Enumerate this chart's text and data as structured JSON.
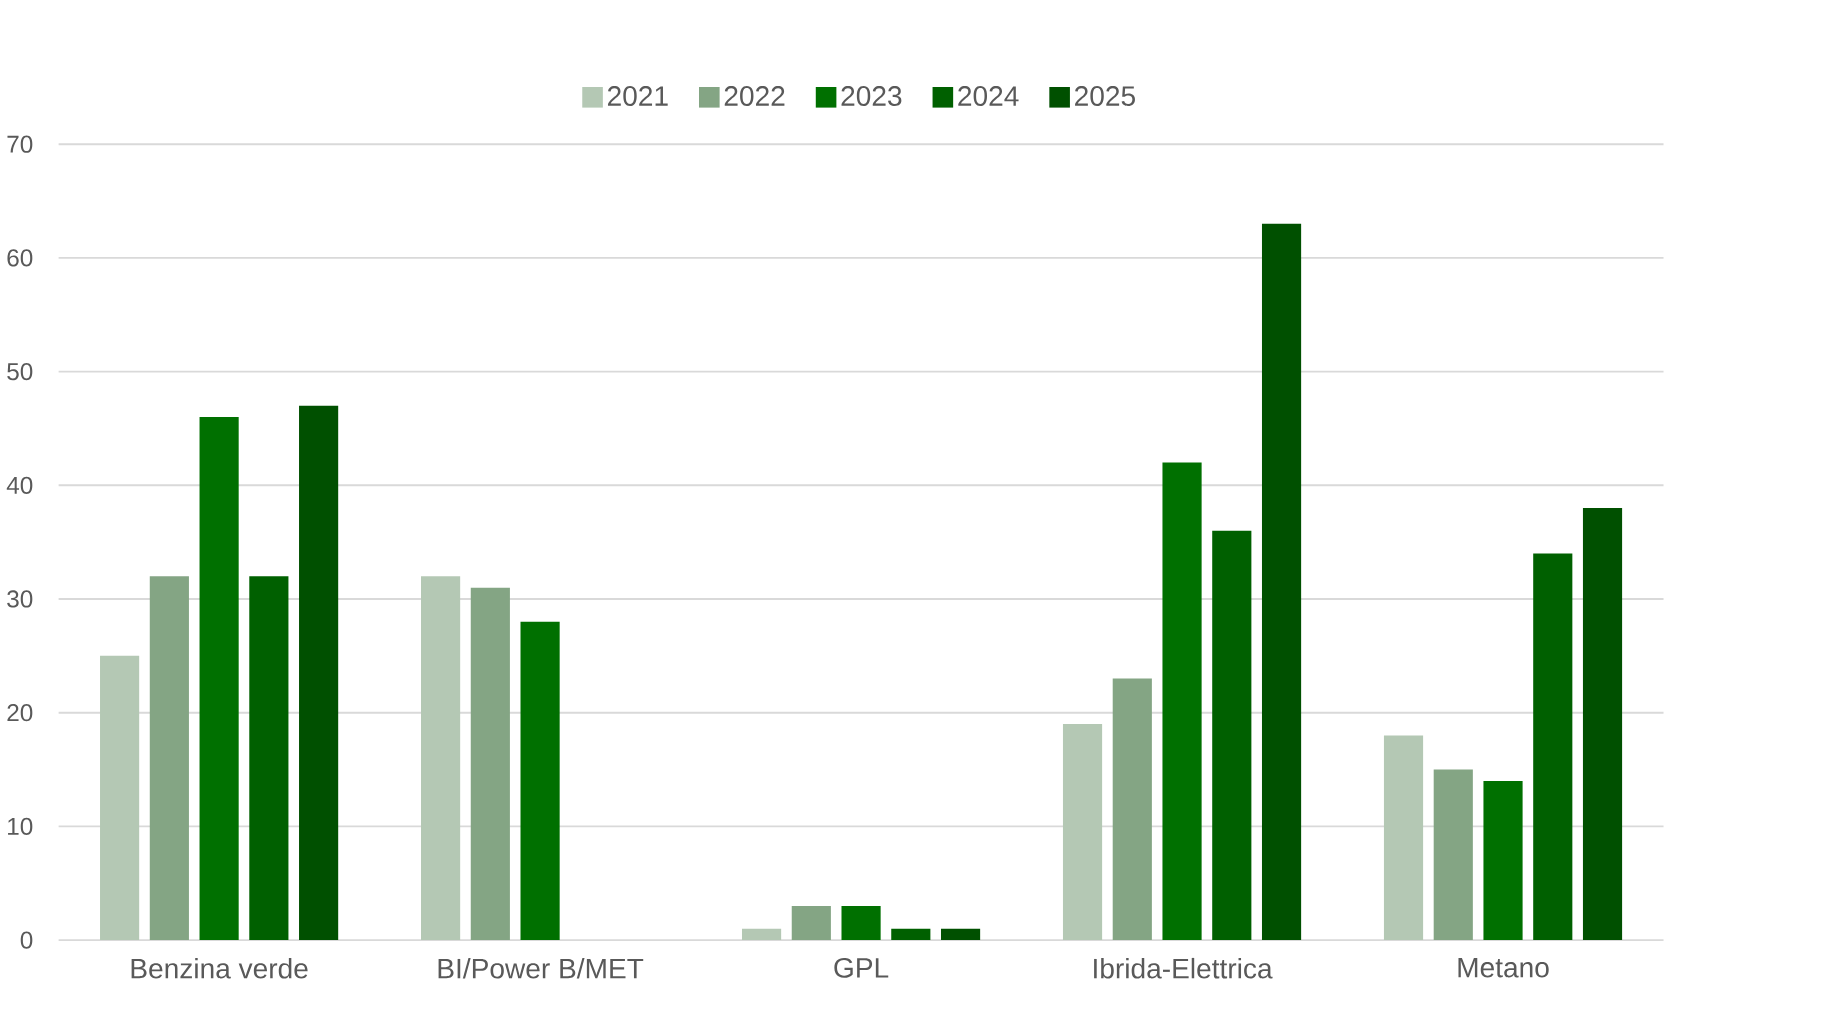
{
  "chart_data": {
    "type": "bar",
    "categories": [
      "Benzina verde",
      "BI/Power B/MET",
      "GPL",
      "Ibrida-Elettrica",
      "Metano"
    ],
    "series": [
      {
        "name": "2021",
        "color": "#b4c8b4",
        "values": [
          25,
          32,
          1,
          19,
          18
        ]
      },
      {
        "name": "2022",
        "color": "#84a584",
        "values": [
          32,
          31,
          3,
          23,
          15
        ]
      },
      {
        "name": "2023",
        "color": "#007000",
        "values": [
          46,
          28,
          3,
          42,
          14
        ]
      },
      {
        "name": "2024",
        "color": "#006000",
        "values": [
          32,
          null,
          1,
          36,
          34
        ]
      },
      {
        "name": "2025",
        "color": "#005000",
        "values": [
          47,
          null,
          1,
          63,
          38
        ]
      }
    ],
    "ylim": [
      0,
      70
    ],
    "yticks": [
      0,
      10,
      20,
      30,
      40,
      50,
      60,
      70
    ],
    "grid": "y",
    "legend": "top"
  }
}
